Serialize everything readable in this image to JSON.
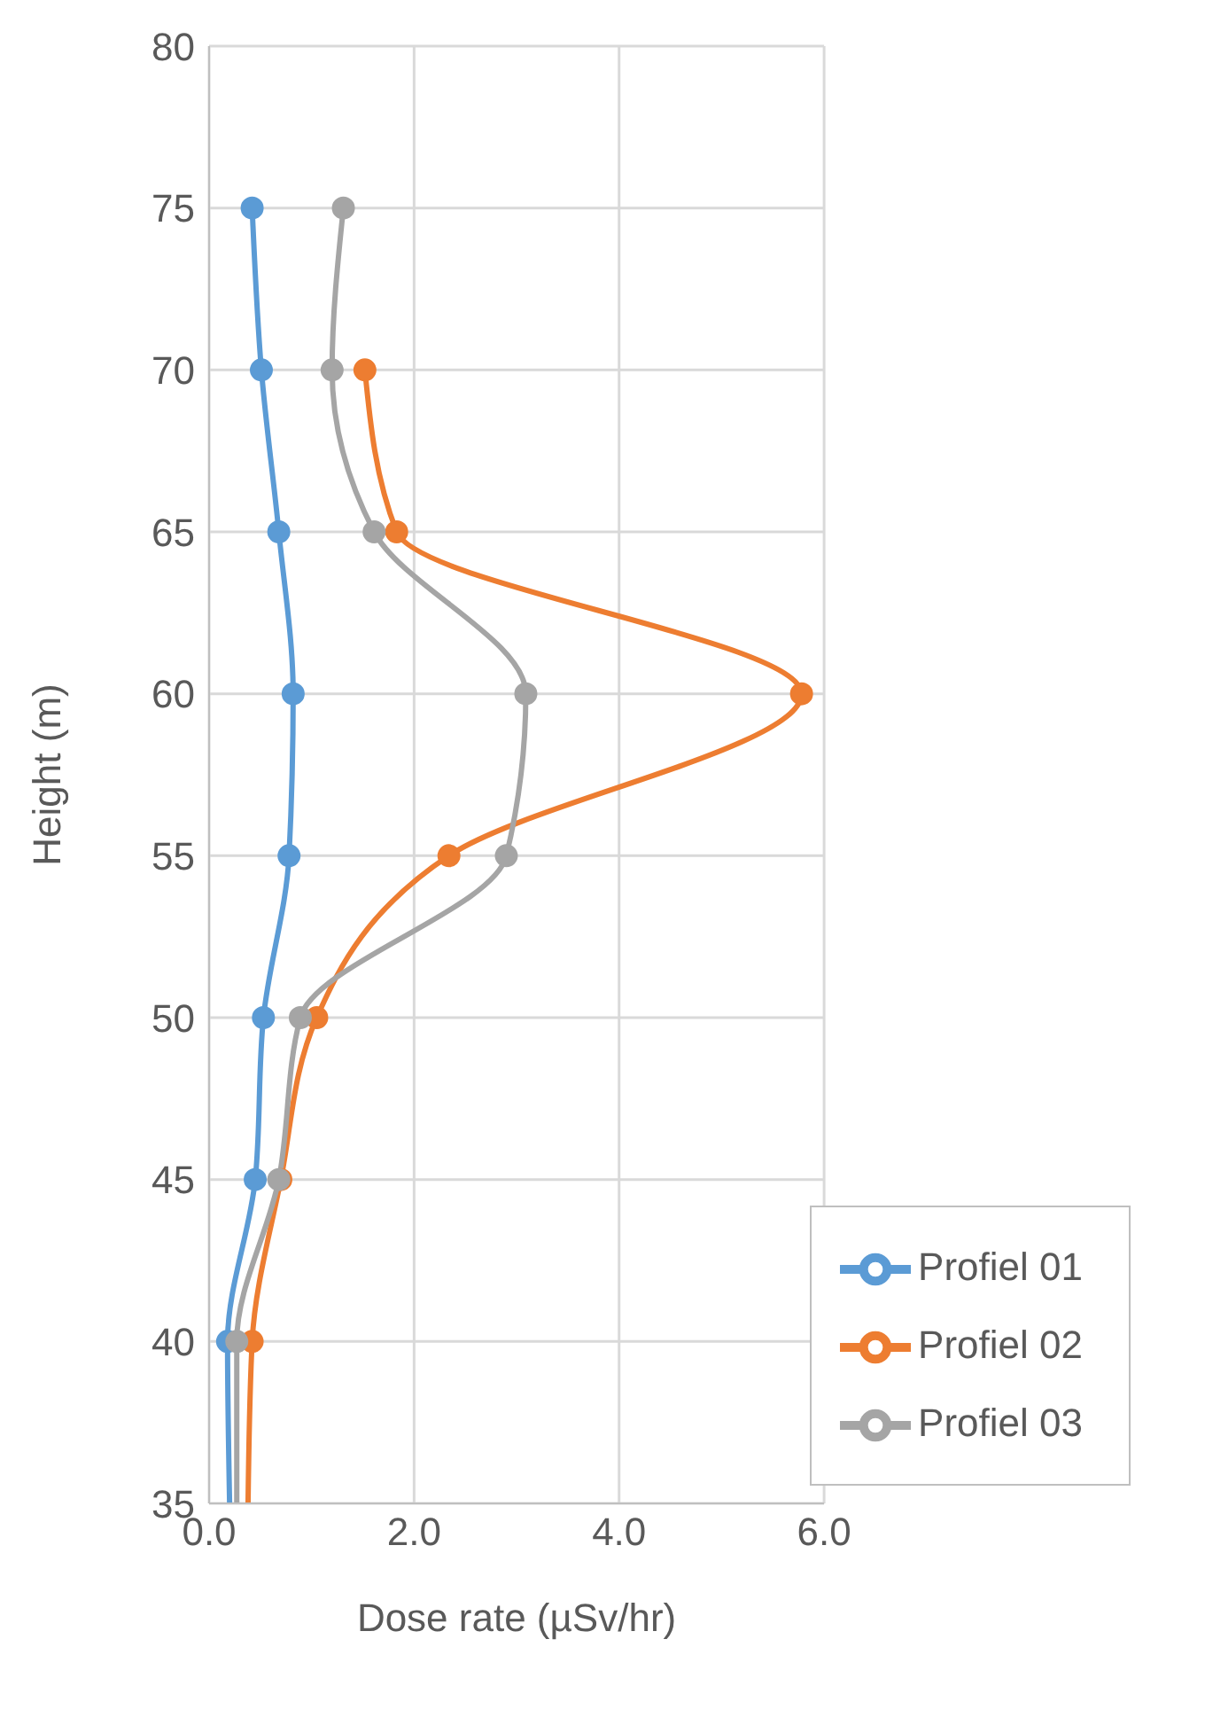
{
  "chart_data": {
    "type": "line",
    "xlabel": "Dose rate (µSv/hr)",
    "ylabel": "Height (m)",
    "xlim": [
      0,
      6
    ],
    "xticks": [
      {
        "value": 0,
        "label": "0.0"
      },
      {
        "value": 2,
        "label": "2.0"
      },
      {
        "value": 4,
        "label": "4.0"
      },
      {
        "value": 6,
        "label": "6.0"
      }
    ],
    "ylim": [
      35,
      80
    ],
    "yticks": [
      35,
      40,
      45,
      50,
      55,
      60,
      65,
      70,
      75,
      80
    ],
    "grid": true,
    "legend": "bottom right",
    "marker": "circle",
    "line_style": "solid",
    "series": [
      {
        "name": "Profiel 01",
        "color": "#5b9bd5",
        "x": [
          0.42,
          0.51,
          0.68,
          0.82,
          0.78,
          0.53,
          0.45,
          0.18,
          0.2
        ],
        "values": [
          75,
          70,
          65,
          60,
          55,
          50,
          45,
          40,
          35
        ]
      },
      {
        "name": "Profiel 02",
        "color": "#ed7d31",
        "x": [
          1.52,
          1.83,
          5.78,
          2.34,
          1.05,
          0.7,
          0.42,
          0.38
        ],
        "values": [
          70,
          65,
          60,
          55,
          50,
          45,
          40,
          35
        ]
      },
      {
        "name": "Profiel 03",
        "color": "#a5a5a5",
        "x": [
          1.31,
          1.2,
          1.61,
          3.09,
          2.9,
          0.89,
          0.68,
          0.27,
          0.27
        ],
        "values": [
          75,
          70,
          65,
          60,
          55,
          50,
          45,
          40,
          35
        ]
      }
    ]
  }
}
